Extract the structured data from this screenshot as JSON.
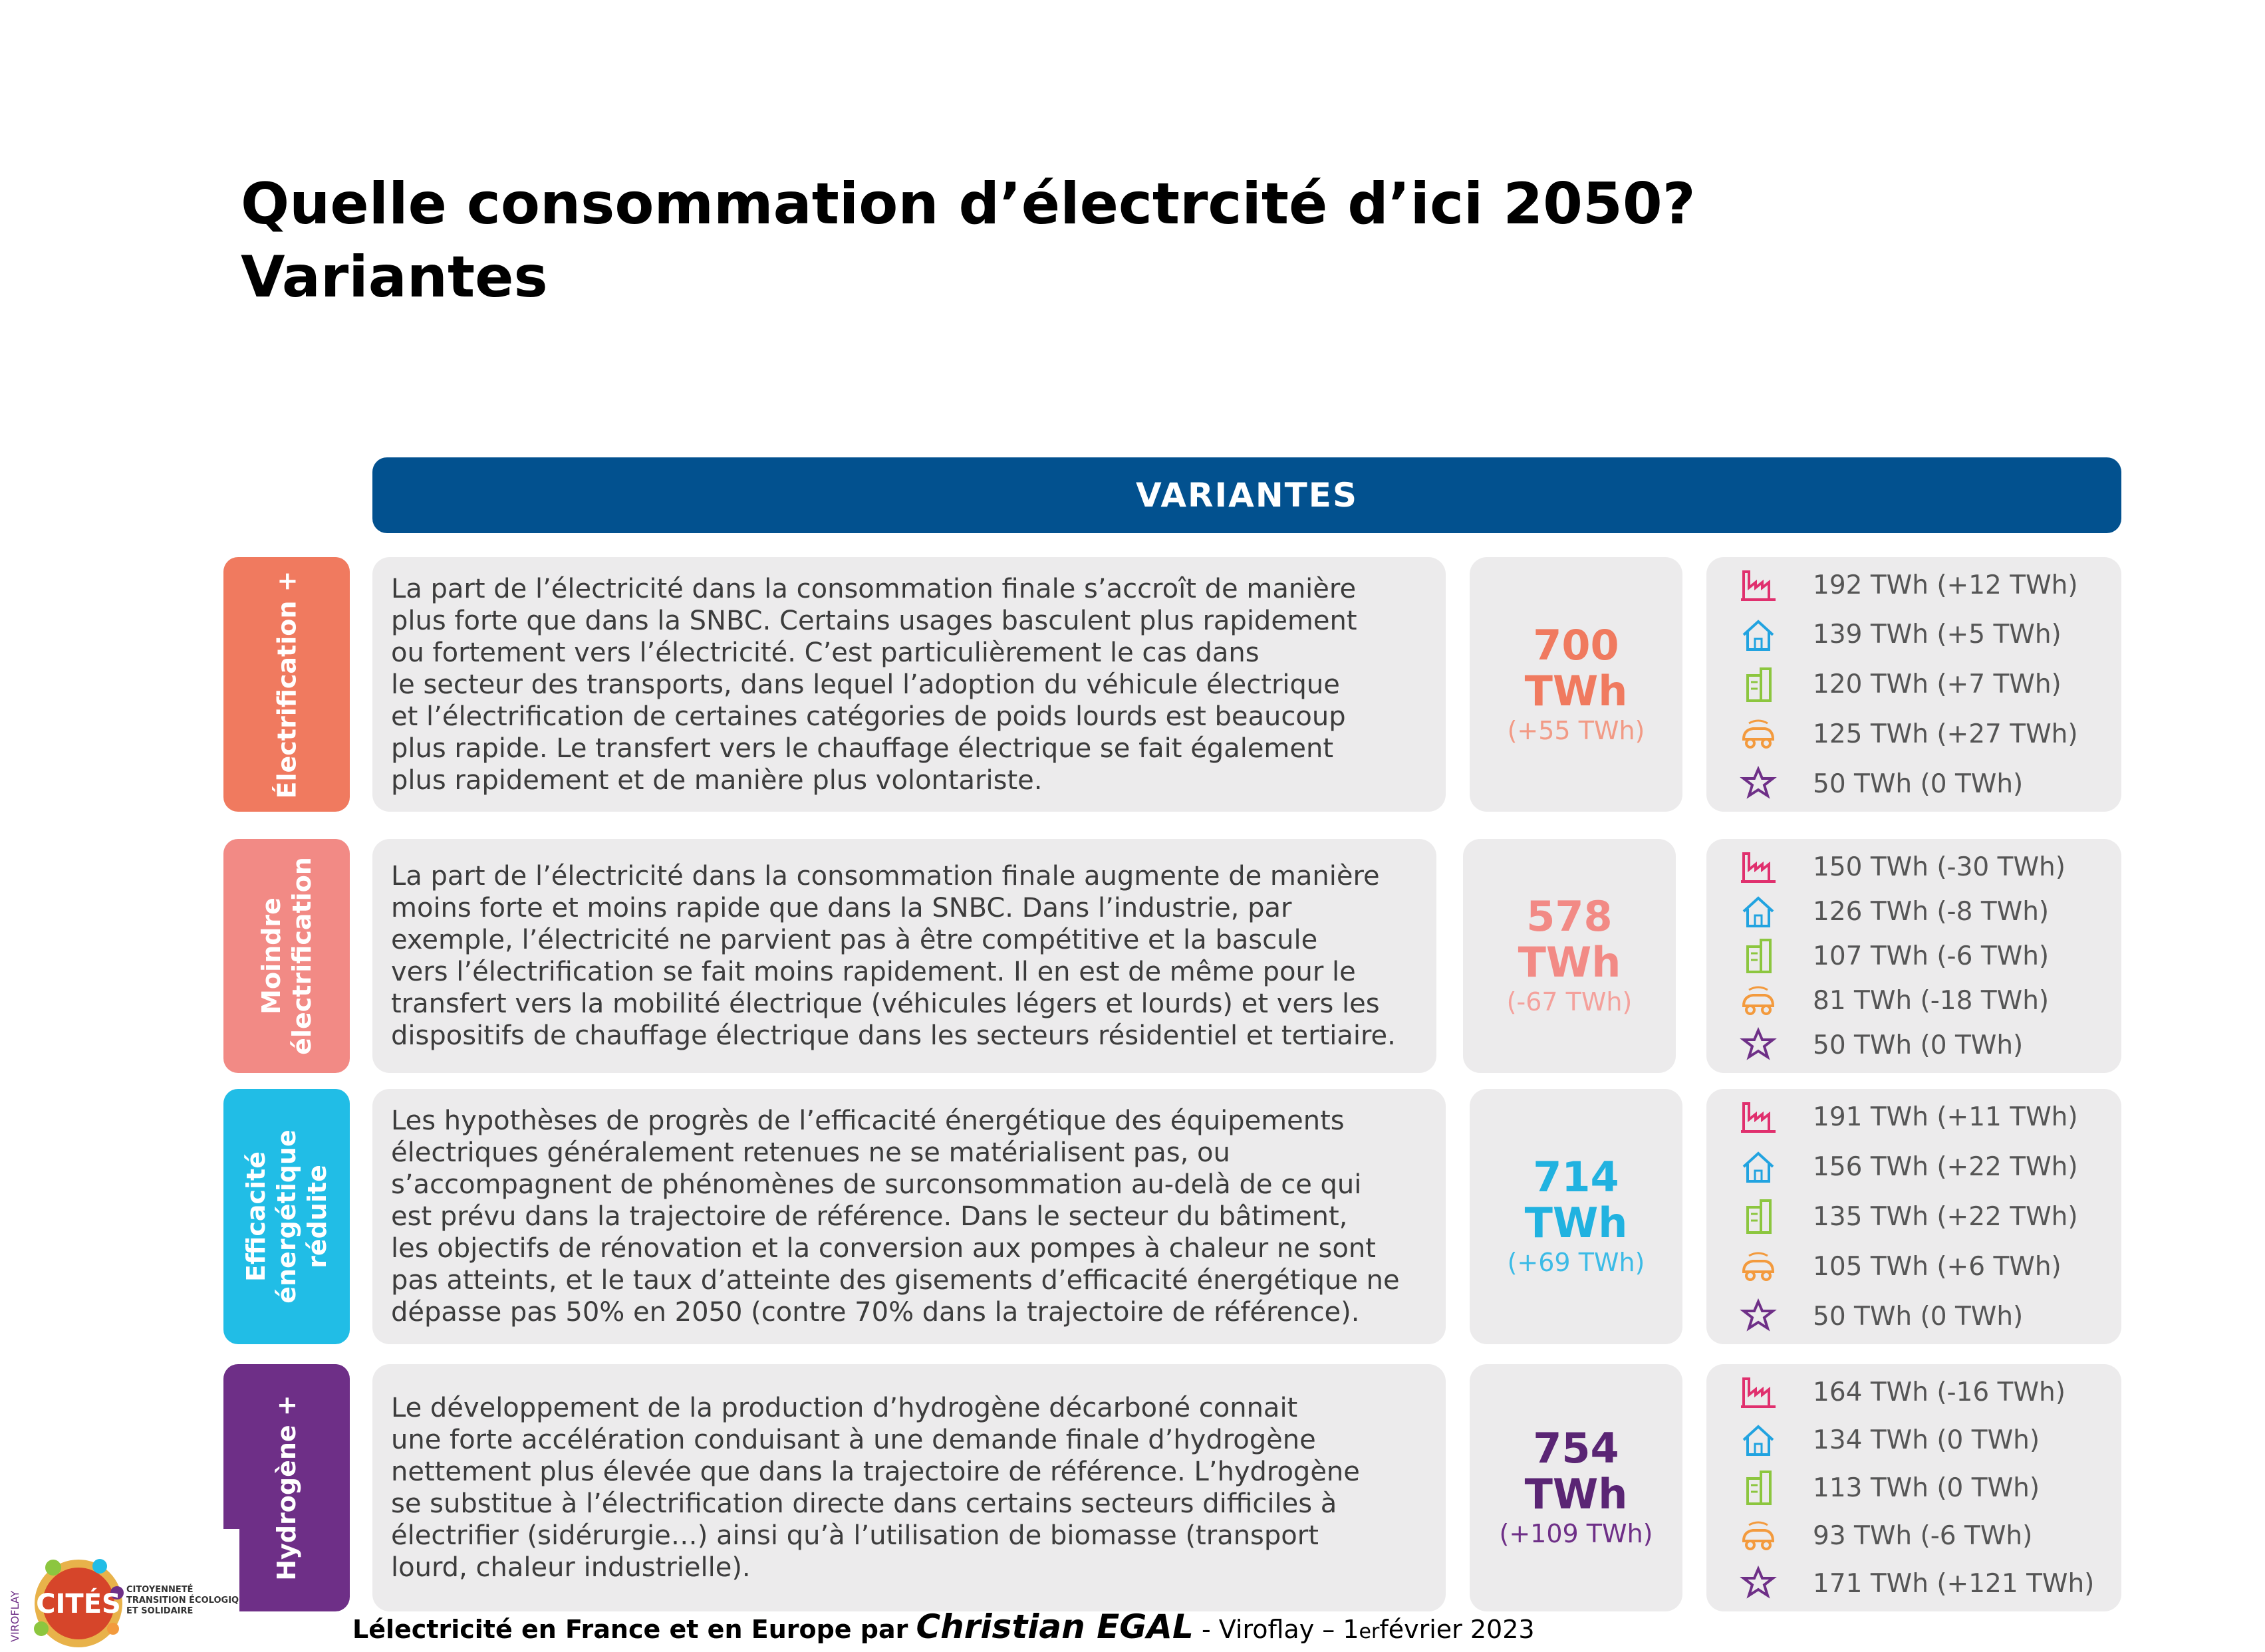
{
  "title": {
    "line1": "Quelle consommation d’électrcité d’ici 2050?",
    "line2": "Variantes"
  },
  "header": {
    "label": "VARIANTES"
  },
  "colors": {
    "header": "#02518f",
    "electrification": "#f07a5f",
    "moindre": "#f28a85",
    "efficacite": "#21bde6",
    "hydrogene": "#6e2f87",
    "panel": "#ecebec"
  },
  "rows": [
    {
      "tab": "Électrification +",
      "text_lines": [
        "La part de l’électricité dans la consommation finale s’accroît de manière",
        "plus forte que dans la SNBC. Certains usages basculent plus rapidement",
        "ou fortement vers l’électricité. C’est particulièrement le cas dans",
        "le secteur des transports, dans lequel l’adoption du véhicule électrique",
        "et l’électrification de certaines catégories de poids lourds est beaucoup",
        "plus rapide. Le transfert vers le chauffage électrique se fait également",
        "plus rapidement et de manière plus volontariste."
      ],
      "total": {
        "value": "700",
        "unit": "TWh",
        "delta": "(+55 TWh)"
      },
      "sectors": [
        "192 TWh (+12 TWh)",
        "139 TWh (+5 TWh)",
        "120 TWh (+7 TWh)",
        "125 TWh (+27 TWh)",
        "50 TWh (0 TWh)"
      ]
    },
    {
      "tab_lines": [
        "Moindre",
        "électrification"
      ],
      "text_lines": [
        "La part de l’électricité dans la consommation finale augmente de manière",
        "moins forte et moins rapide que dans la SNBC. Dans l’industrie, par",
        "exemple, l’électricité ne parvient pas à être compétitive et la bascule",
        "vers l’électrification se fait moins rapidement. Il en est de même pour le",
        "transfert vers la mobilité électrique (véhicules légers et lourds) et vers les",
        "dispositifs de chauffage électrique dans les secteurs résidentiel et tertiaire."
      ],
      "total": {
        "value": "578",
        "unit": "TWh",
        "delta": "(-67 TWh)"
      },
      "sectors": [
        "150 TWh (-30 TWh)",
        "126 TWh (-8 TWh)",
        "107 TWh (-6 TWh)",
        "81 TWh (-18 TWh)",
        "50 TWh (0 TWh)"
      ]
    },
    {
      "tab_lines": [
        "Efficacité",
        "énergétique",
        "réduite"
      ],
      "text_lines": [
        "Les hypothèses de progrès de l’efficacité énergétique des équipements",
        "électriques généralement retenues ne se matérialisent pas, ou",
        "s’accompagnent de phénomènes de surconsommation au-delà de ce qui",
        "est prévu dans la trajectoire de référence. Dans le secteur du bâtiment,",
        "les objectifs de rénovation et la conversion aux pompes à chaleur ne sont",
        "pas atteints, et le taux d’atteinte des gisements d’efficacité énergétique ne",
        "dépasse pas 50% en 2050 (contre 70% dans la trajectoire de référence)."
      ],
      "total": {
        "value": "714",
        "unit": "TWh",
        "delta": "(+69 TWh)"
      },
      "sectors": [
        "191 TWh (+11 TWh)",
        "156 TWh (+22 TWh)",
        "135 TWh (+22 TWh)",
        "105 TWh (+6 TWh)",
        "50 TWh (0 TWh)"
      ]
    },
    {
      "tab": "Hydrogène +",
      "text_lines": [
        "Le développement de la production d’hydrogène décarboné connait",
        "une forte accélération conduisant à une demande finale d’hydrogène",
        "nettement plus élevée que dans la trajectoire de référence. L’hydrogène",
        "se substitue à l’électrification directe dans certains secteurs difficiles à",
        "électrifier (sidérurgie…) ainsi qu’à l’utilisation de biomasse (transport",
        "lourd, chaleur industrielle)."
      ],
      "total": {
        "value": "754",
        "unit": "TWh",
        "delta": "(+109 TWh)"
      },
      "sectors": [
        "164 TWh (-16 TWh)",
        "134 TWh (0 TWh)",
        "113 TWh (0 TWh)",
        "93 TWh (-6 TWh)",
        "171 TWh (+121 TWh)"
      ]
    }
  ],
  "sector_icons": [
    "industry-icon",
    "house-icon",
    "building-icon",
    "transport-icon",
    "other-uses-icon"
  ],
  "logo": {
    "vertical_text": "VIROFLAY",
    "name": "CITÉS",
    "tagline_lines": [
      "CITOYENNETÉ",
      "TRANSITION ÉCOLOGIQUE",
      "ET SOLIDAIRE"
    ]
  },
  "footer": {
    "prefix": "L",
    "topic": "électricité en France et en Europe par",
    "author": "Christian EGAL",
    "place_date_prefix": "- Viroflay – 1",
    "superscript": "er",
    "date_rest": " février 2023"
  }
}
